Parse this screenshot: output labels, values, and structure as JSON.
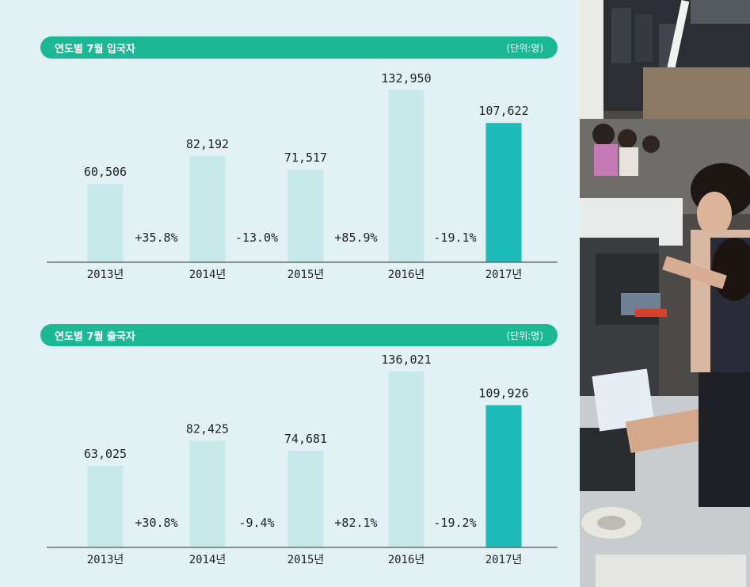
{
  "colors": {
    "background": "#e1f1f4",
    "header": "#1bb896",
    "bar_past": "#c7e9ea",
    "bar_current": "#1dbcbb",
    "axis": "#555555",
    "text": "#222222"
  },
  "chart_data": [
    {
      "type": "bar",
      "title": "연도별 7월 입국자",
      "unit": "(단위:명)",
      "categories": [
        "2013년",
        "2014년",
        "2015년",
        "2016년",
        "2017년"
      ],
      "values": [
        60506,
        82192,
        71517,
        132950,
        107622
      ],
      "value_labels": [
        "60,506",
        "82,192",
        "71,517",
        "132,950",
        "107,622"
      ],
      "changes": [
        "+35.8%",
        "-13.0%",
        "+85.9%",
        "-19.1%"
      ],
      "highlight_index": 4,
      "ylim": [
        0,
        150000
      ]
    },
    {
      "type": "bar",
      "title": "연도별 7월 출국자",
      "unit": "(단위:명)",
      "categories": [
        "2013년",
        "2014년",
        "2015년",
        "2016년",
        "2017년"
      ],
      "values": [
        63025,
        82425,
        74681,
        136021,
        109926
      ],
      "value_labels": [
        "63,025",
        "82,425",
        "74,681",
        "136,021",
        "109,926"
      ],
      "changes": [
        "+30.8%",
        "-9.4%",
        "+82.1%",
        "-19.2%"
      ],
      "highlight_index": 4,
      "ylim": [
        0,
        150000
      ]
    }
  ]
}
